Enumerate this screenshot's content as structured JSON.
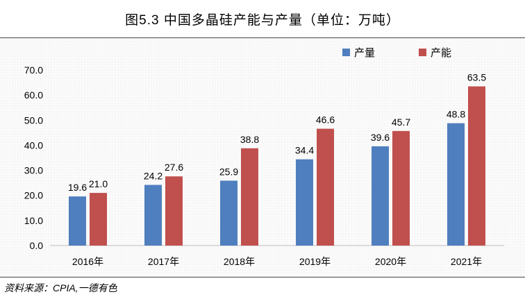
{
  "header": {
    "title": "图5.3  中国多晶硅产能与产量（单位：万吨）"
  },
  "footer": {
    "source": "资料来源：CPIA,一德有色"
  },
  "colors": {
    "production": "#4f7fbe",
    "capacity": "#c0504d"
  },
  "chart_data": {
    "type": "bar",
    "title": "图5.3  中国多晶硅产能与产量（单位：万吨）",
    "categories": [
      "2016年",
      "2017年",
      "2018年",
      "2019年",
      "2020年",
      "2021年"
    ],
    "series": [
      {
        "name": "产量",
        "values": [
          19.6,
          24.2,
          25.9,
          34.4,
          39.6,
          48.8
        ]
      },
      {
        "name": "产能",
        "values": [
          21.0,
          27.6,
          38.8,
          46.6,
          45.7,
          63.5
        ]
      }
    ],
    "ylim": [
      0,
      70
    ],
    "yticks": [
      "0.0",
      "10.0",
      "20.0",
      "30.0",
      "40.0",
      "50.0",
      "60.0",
      "70.0"
    ],
    "xlabel": "",
    "ylabel": "",
    "grid": false,
    "legend": "top-right",
    "data_labels": true
  }
}
